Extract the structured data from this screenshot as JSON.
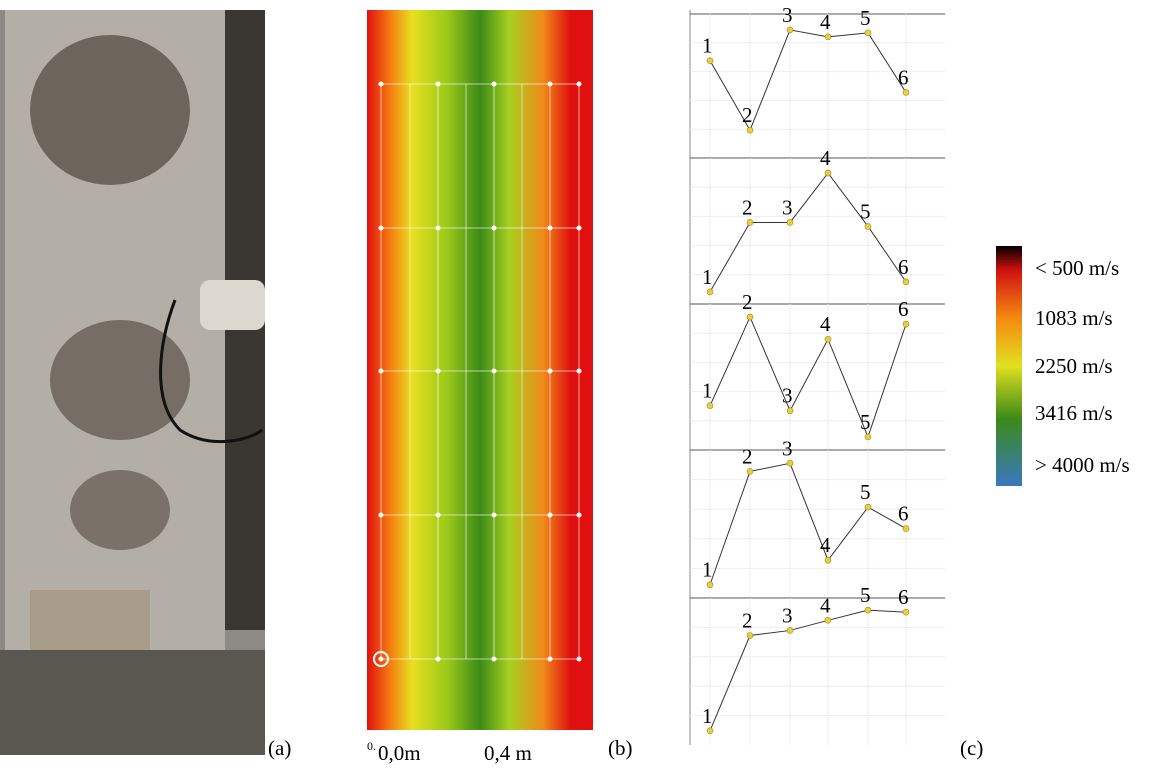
{
  "panels": {
    "a": "(a)",
    "b": "(b)",
    "c": "(c)"
  },
  "heatmap": {
    "origin_label": "0.",
    "x_labels": [
      "0,0m",
      "0,4 m"
    ],
    "legend": [
      "< 500 m/s",
      "1083 m/s",
      "2250 m/s",
      "3416 m/s",
      "> 4000 m/s"
    ]
  },
  "chart_data": [
    {
      "type": "line",
      "categories": [
        "1",
        "2",
        "3",
        "4",
        "5",
        "6"
      ],
      "values": [
        98,
        28,
        129,
        122,
        126,
        66
      ],
      "ylim": [
        0,
        145
      ],
      "color": "#f0d020"
    },
    {
      "type": "line",
      "categories": [
        "1",
        "2",
        "3",
        "4",
        "5",
        "6"
      ],
      "values": [
        12,
        81,
        81,
        130,
        77,
        22
      ],
      "ylim": [
        0,
        145
      ],
      "color": "#f0d020"
    },
    {
      "type": "line",
      "categories": [
        "1",
        "2",
        "3",
        "4",
        "5",
        "6"
      ],
      "values": [
        44,
        132,
        39,
        110,
        13,
        125
      ],
      "ylim": [
        0,
        145
      ],
      "color": "#f0d020"
    },
    {
      "type": "line",
      "categories": [
        "1",
        "2",
        "3",
        "4",
        "5",
        "6"
      ],
      "values": [
        13,
        124,
        132,
        37,
        89,
        68
      ],
      "ylim": [
        0,
        145
      ],
      "color": "#f0d020"
    },
    {
      "type": "line",
      "categories": [
        "1",
        "2",
        "3",
        "4",
        "5",
        "6"
      ],
      "values": [
        14,
        108,
        113,
        123,
        133,
        131
      ],
      "ylim": [
        0,
        145
      ],
      "color": "#f0d020"
    }
  ]
}
